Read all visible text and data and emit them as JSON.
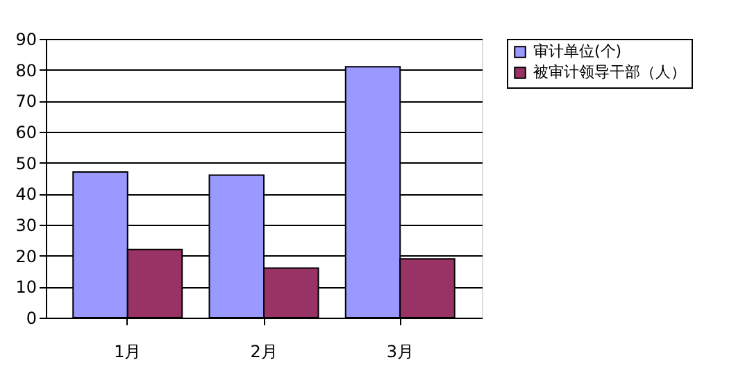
{
  "chart_data": {
    "type": "bar",
    "categories": [
      "1月",
      "2月",
      "3月"
    ],
    "series": [
      {
        "name": "审计单位(个)",
        "color": "#9999ff",
        "values": [
          47,
          46,
          81
        ]
      },
      {
        "name": "被审计领导干部（人）",
        "color": "#993366",
        "values": [
          22,
          16,
          19
        ]
      }
    ],
    "ylim": [
      0,
      90
    ],
    "yticks": [
      0,
      10,
      20,
      30,
      40,
      50,
      60,
      70,
      80,
      90
    ],
    "grid": "y",
    "legend": "right"
  }
}
